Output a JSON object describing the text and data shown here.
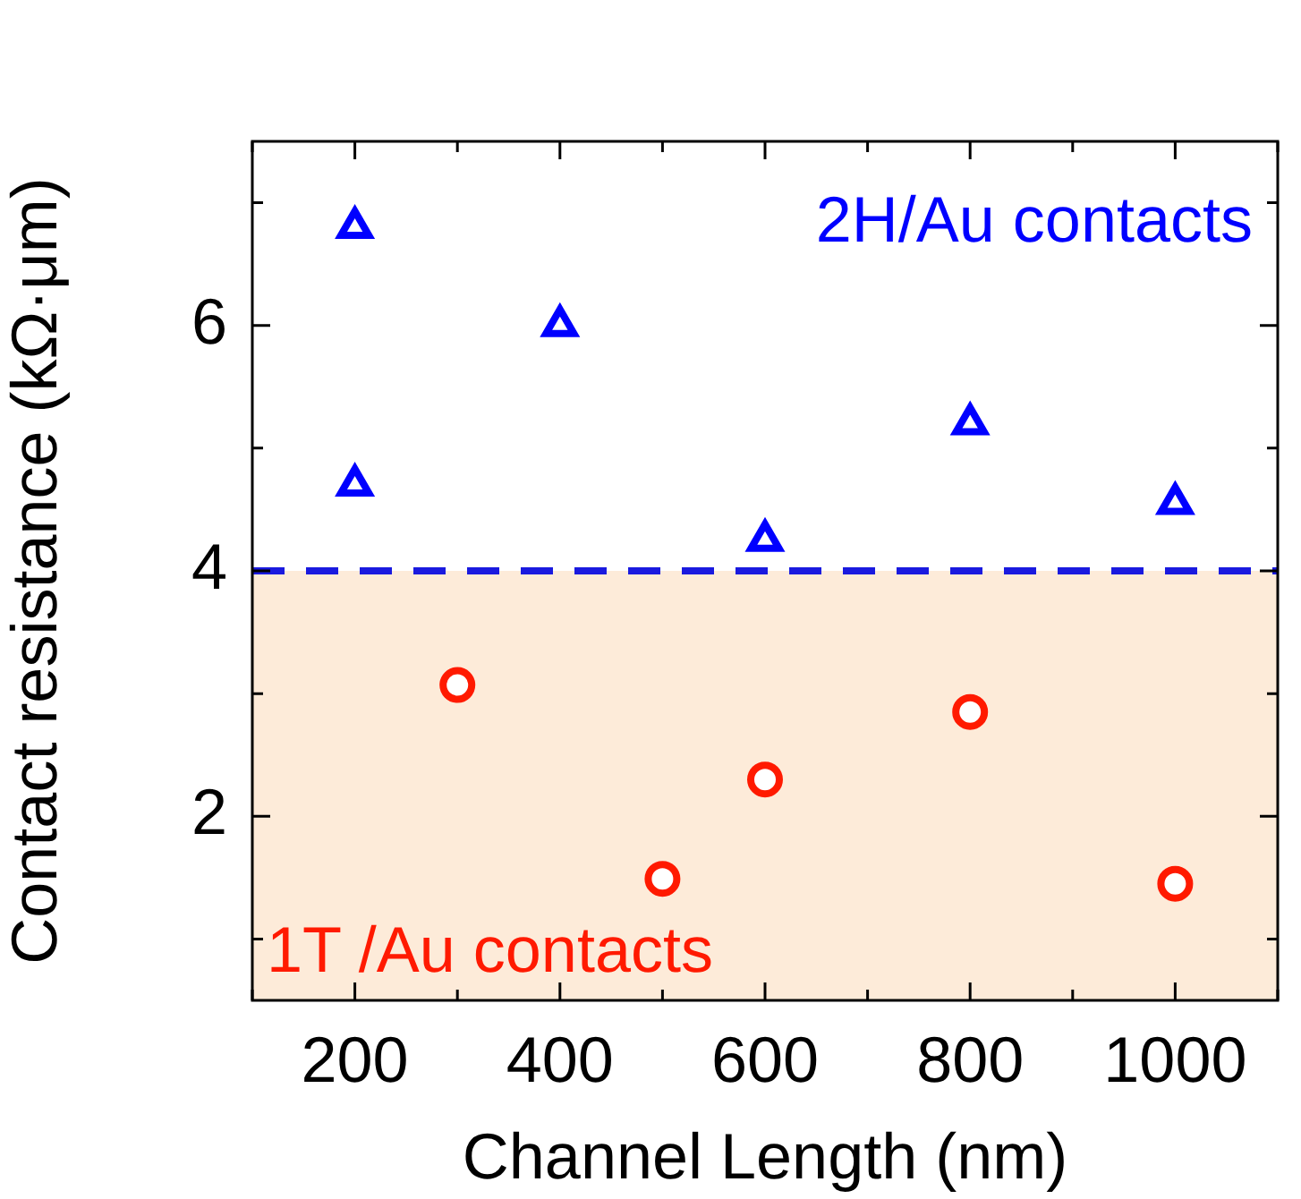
{
  "chart_data": {
    "type": "scatter",
    "xlabel": "Channel Length (nm)",
    "ylabel": "Contact resistance (kΩ·μm)",
    "series": [
      {
        "name": null,
        "color": "#0000ff",
        "marker": "triangle",
        "x": [
          200,
          200,
          400,
          600,
          800,
          1000
        ],
        "values": [
          6.8,
          4.7,
          6.0,
          4.25,
          5.2,
          4.55
        ]
      },
      {
        "name": null,
        "color": "#ff1a00",
        "marker": "circle",
        "x": [
          300,
          500,
          600,
          800,
          1000
        ],
        "values": [
          3.07,
          1.49,
          2.3,
          2.85,
          1.45
        ]
      }
    ],
    "xlim": [
      100,
      1100
    ],
    "xticks": [
      {
        "value": 100,
        "label": null
      },
      200,
      {
        "value": 300,
        "label": null
      },
      400,
      {
        "value": 500,
        "label": null
      },
      600,
      {
        "value": 700,
        "label": null
      },
      800,
      {
        "value": 900,
        "label": null
      },
      1000,
      {
        "value": 1100,
        "label": null
      }
    ],
    "ylim": [
      0.5,
      7.5
    ],
    "yticks": [
      {
        "value": 1,
        "label": null
      },
      2,
      {
        "value": 3,
        "label": null
      },
      4,
      {
        "value": 5,
        "label": null
      },
      6,
      {
        "value": 7,
        "label": null
      }
    ],
    "ref_lines": [
      {
        "axis": "y",
        "value": 4,
        "label": null,
        "color": "#1a1adf",
        "line_style": "dashed"
      }
    ],
    "bands": [
      {
        "axis": "y",
        "from": 0.5,
        "to": 4,
        "label": null,
        "color": "#fdebd9"
      }
    ],
    "annotations": [
      "2H/Au contacts",
      "1T /Au contacts"
    ],
    "grid": false,
    "legend": false
  }
}
